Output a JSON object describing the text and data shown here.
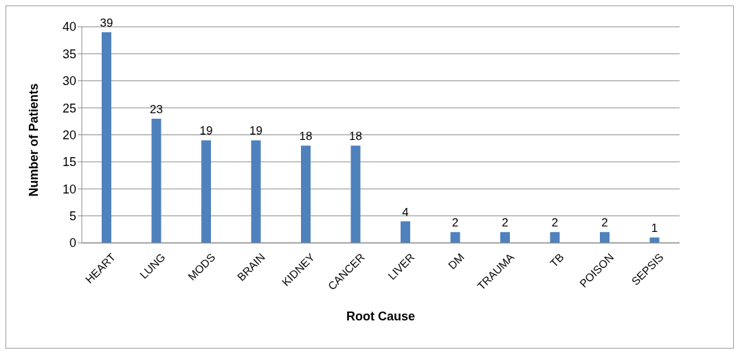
{
  "chart_data": {
    "type": "bar",
    "xlabel": "Root Cause",
    "ylabel": "Number of Patients",
    "categories": [
      "HEART",
      "LUNG",
      "MODS",
      "BRAIN",
      "KIDNEY",
      "CANCER",
      "LIVER",
      "DM",
      "TRAUMA",
      "TB",
      "POISON",
      "SEPSIS"
    ],
    "values": [
      39,
      23,
      19,
      19,
      18,
      18,
      4,
      2,
      2,
      2,
      2,
      1
    ],
    "color": "#4f81bd",
    "ylim": [
      0,
      40
    ],
    "yticks": [
      0,
      5,
      10,
      15,
      20,
      25,
      30,
      35,
      40
    ],
    "grid": "y",
    "data_labels": true
  }
}
